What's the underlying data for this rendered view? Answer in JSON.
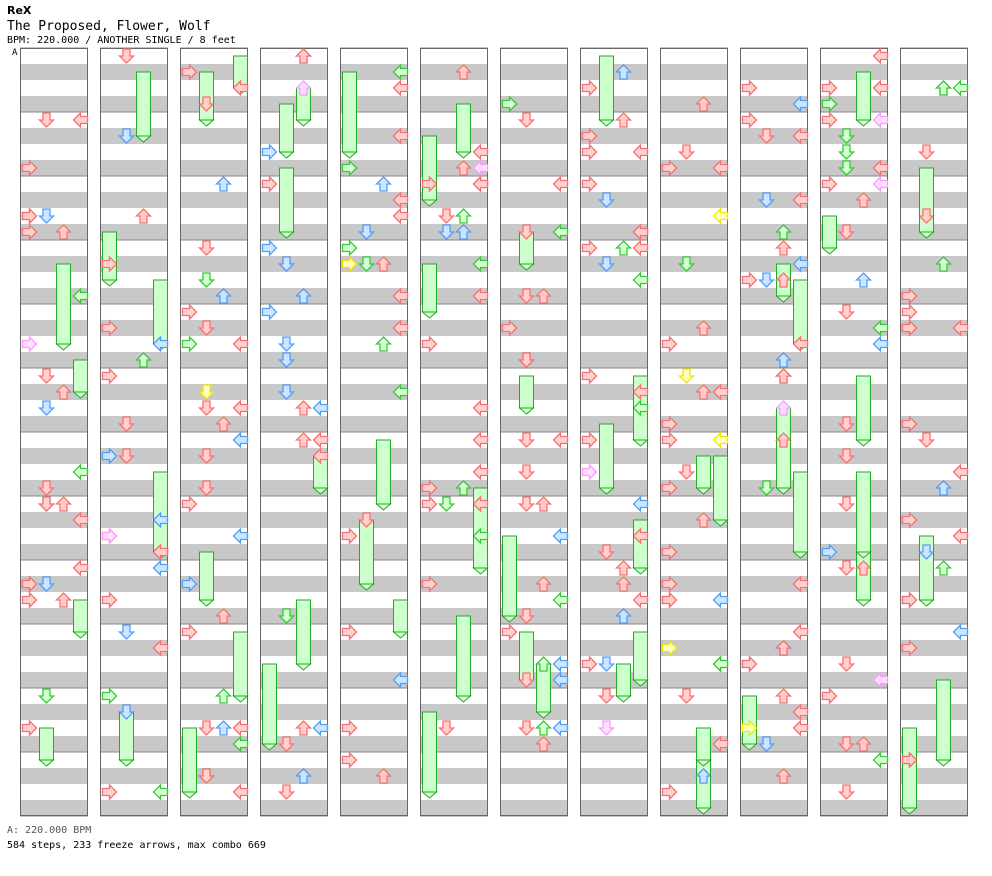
{
  "header": {
    "brand": "ReX",
    "song_title": "The Proposed, Flower, Wolf",
    "info_line": "BPM: 220.000 / ANOTHER SINGLE / 8 feet",
    "marker": "A"
  },
  "footer": {
    "bpm_line": "A: 220.000 BPM",
    "stats_line": "584 steps, 233 freeze arrows, max combo 669"
  },
  "colors": {
    "note_red": "#ff6e6e",
    "note_blue": "#4d9fff",
    "note_green": "#33cc33",
    "note_pink": "#ff99ff",
    "note_yellow": "#f5e600",
    "freeze_fill": "#ccffcc",
    "freeze_border": "#22aa22",
    "stripe": "#c8c8c8"
  },
  "chart_data": {
    "type": "step-chart",
    "columns": 12,
    "lanes": [
      "left",
      "down",
      "up",
      "right"
    ],
    "arrow_colors": [
      "red",
      "blue",
      "green",
      "pink",
      "yellow"
    ]
  }
}
